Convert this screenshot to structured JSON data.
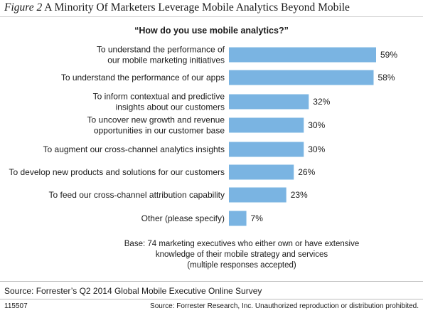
{
  "figure": {
    "number": "Figure 2",
    "title": "A Minority Of Marketers Leverage Mobile Analytics Beyond Mobile"
  },
  "chart_data": {
    "type": "bar",
    "orientation": "horizontal",
    "title": "“How do you use mobile analytics?”",
    "categories": [
      [
        "To understand the performance of",
        "our mobile marketing initiatives"
      ],
      [
        "To understand the performance of our apps"
      ],
      [
        "To inform contextual and predictive",
        "insights about our customers"
      ],
      [
        "To uncover new growth and revenue",
        "opportunities in our customer base"
      ],
      [
        "To augment our cross-channel analytics insights"
      ],
      [
        "To develop new products and solutions for our customers"
      ],
      [
        "To feed our cross-channel attribution capability"
      ],
      [
        "Other (please specify)"
      ]
    ],
    "values": [
      59,
      58,
      32,
      30,
      30,
      26,
      23,
      7
    ],
    "value_labels": [
      "59%",
      "58%",
      "32%",
      "30%",
      "30%",
      "26%",
      "23%",
      "7%"
    ],
    "unit": "%",
    "xlim": [
      0,
      59
    ],
    "grid": false,
    "bar_color": "#7ab4e2"
  },
  "base_note": [
    "Base: 74 marketing executives who either own or have extensive",
    "knowledge of their mobile strategy and services",
    "(multiple responses accepted)"
  ],
  "source": "Source: Forrester’s Q2 2014 Global Mobile Executive Online Survey",
  "doc_id": "115507",
  "copyright": "Source: Forrester Research, Inc. Unauthorized reproduction or distribution prohibited."
}
